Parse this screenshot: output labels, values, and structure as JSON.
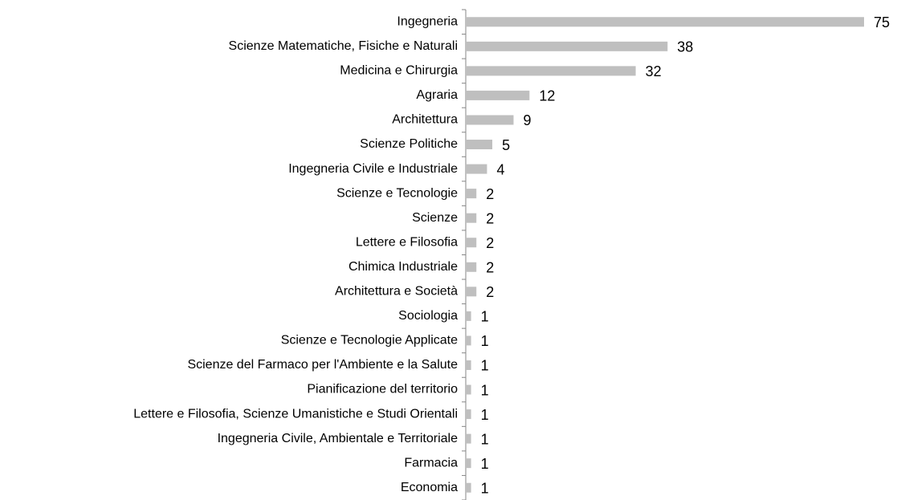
{
  "chart_data": {
    "type": "barh",
    "categories": [
      "Ingegneria",
      "Scienze Matematiche, Fisiche e Naturali",
      "Medicina e Chirurgia",
      "Agraria",
      "Architettura",
      "Scienze Politiche",
      "Ingegneria Civile e Industriale",
      "Scienze e Tecnologie",
      "Scienze",
      "Lettere e Filosofia",
      "Chimica Industriale",
      "Architettura e Società",
      "Sociologia",
      "Scienze e Tecnologie Applicate",
      "Scienze del Farmaco per l'Ambiente e la Salute",
      "Pianificazione del territorio",
      "Lettere e Filosofia, Scienze Umanistiche e Studi Orientali",
      "Ingegneria Civile, Ambientale e Territoriale",
      "Farmacia",
      "Economia"
    ],
    "values": [
      75,
      38,
      32,
      12,
      9,
      5,
      4,
      2,
      2,
      2,
      2,
      2,
      1,
      1,
      1,
      1,
      1,
      1,
      1,
      1
    ],
    "color": "#bfbfbf"
  }
}
